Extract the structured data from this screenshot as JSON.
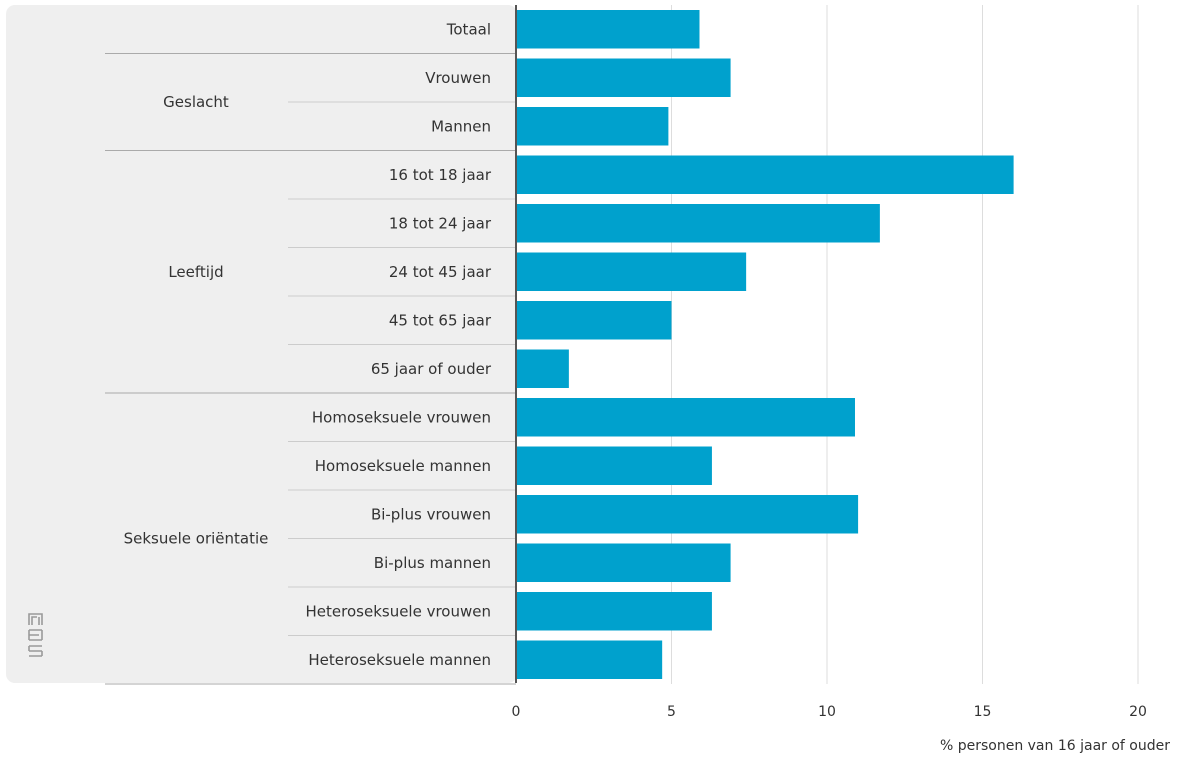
{
  "chart_data": {
    "type": "bar",
    "orientation": "horizontal",
    "xlabel": "% personen van 16 jaar of ouder",
    "xlim": [
      0,
      20
    ],
    "xticks": [
      0,
      5,
      10,
      15,
      20
    ],
    "grid": true,
    "bar_color": "#00a1cd",
    "groups": [
      {
        "name": "",
        "categories": [
          "Totaal"
        ]
      },
      {
        "name": "Geslacht",
        "categories": [
          "Vrouwen",
          "Mannen"
        ]
      },
      {
        "name": "Leeftijd",
        "categories": [
          "16 tot 18 jaar",
          "18 tot 24 jaar",
          "24 tot 45 jaar",
          "45 tot 65 jaar",
          "65 jaar of ouder"
        ]
      },
      {
        "name": "Seksuele oriëntatie",
        "categories": [
          "Homoseksuele vrouwen",
          "Homoseksuele mannen",
          "Bi-plus vrouwen",
          "Bi-plus mannen",
          "Heteroseksuele vrouwen",
          "Heteroseksuele mannen"
        ]
      }
    ],
    "categories": [
      "Totaal",
      "Vrouwen",
      "Mannen",
      "16 tot 18 jaar",
      "18 tot 24 jaar",
      "24 tot 45 jaar",
      "45 tot 65 jaar",
      "65 jaar of ouder",
      "Homoseksuele vrouwen",
      "Homoseksuele mannen",
      "Bi-plus vrouwen",
      "Bi-plus mannen",
      "Heteroseksuele vrouwen",
      "Heteroseksuele mannen"
    ],
    "values": [
      5.9,
      6.9,
      4.9,
      16.0,
      11.7,
      7.4,
      5.0,
      1.7,
      10.9,
      6.3,
      11.0,
      6.9,
      6.3,
      4.7
    ]
  },
  "logo": {
    "text": "cbs",
    "icon": "cbs-logo-icon"
  }
}
